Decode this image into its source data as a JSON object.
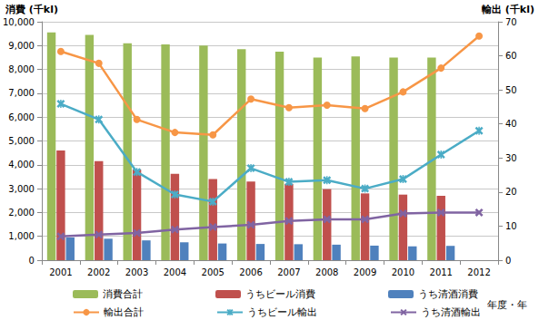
{
  "chart_data": {
    "type": "bar",
    "y_label": "消費 (千kl)",
    "y2_label": "輸出 (千kl)",
    "x_label": "年度・年",
    "categories": [
      "2001",
      "2002",
      "2003",
      "2004",
      "2005",
      "2006",
      "2007",
      "2008",
      "2009",
      "2010",
      "2011",
      "2012"
    ],
    "ylim": [
      0,
      10000
    ],
    "yticks": [
      0,
      1000,
      2000,
      3000,
      4000,
      5000,
      6000,
      7000,
      8000,
      9000,
      10000
    ],
    "y2lim": [
      0,
      70
    ],
    "y2ticks": [
      0,
      10,
      20,
      30,
      40,
      50,
      60,
      70
    ],
    "grid": true,
    "legend": "bottom",
    "series": [
      {
        "name": "消費合計",
        "type": "bar",
        "color": "#9bbb59",
        "values": [
          9550,
          9450,
          9100,
          9050,
          9000,
          8850,
          8750,
          8500,
          8550,
          8500,
          8500,
          null
        ]
      },
      {
        "name": "うちビール消費",
        "type": "bar",
        "color": "#c0504d",
        "values": [
          4600,
          4150,
          3800,
          3620,
          3400,
          3300,
          3200,
          2980,
          2800,
          2750,
          2700,
          null
        ]
      },
      {
        "name": "うち清酒消費",
        "type": "bar",
        "color": "#4f81bd",
        "values": [
          950,
          900,
          830,
          750,
          700,
          680,
          670,
          650,
          610,
          580,
          600,
          null
        ]
      },
      {
        "name": "輸出合計",
        "type": "line",
        "axis": "y2",
        "color": "#f79646",
        "marker": "circle",
        "values": [
          61.3,
          57.8,
          41.3,
          37.5,
          36.8,
          47.3,
          44.8,
          45.5,
          44.5,
          49.4,
          56.4,
          65.8
        ]
      },
      {
        "name": "うちビール輸出",
        "type": "line",
        "axis": "y2",
        "color": "#4bacc6",
        "marker": "asterisk",
        "values": [
          45.9,
          41.3,
          25.9,
          19.3,
          17.2,
          27.0,
          23.0,
          23.5,
          21.0,
          23.8,
          31.0,
          38.0
        ]
      },
      {
        "name": "うち清酒輸出",
        "type": "line",
        "axis": "y2",
        "color": "#8064a2",
        "marker": "x",
        "values": [
          7.0,
          7.5,
          8.0,
          9.0,
          9.7,
          10.4,
          11.5,
          12.0,
          12.0,
          13.7,
          14.0,
          14.0
        ]
      }
    ]
  }
}
